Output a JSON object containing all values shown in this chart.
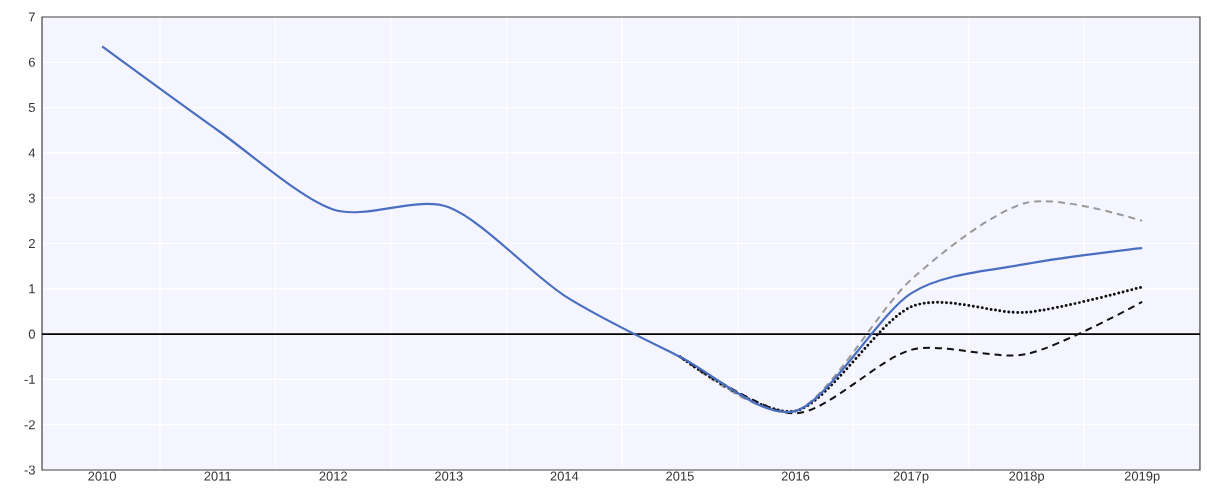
{
  "chart_data": {
    "type": "line",
    "categories": [
      "2010",
      "2011",
      "2012",
      "2013",
      "2014",
      "2015",
      "2016",
      "2017p",
      "2018p",
      "2019p"
    ],
    "series": [
      {
        "color": "#9a9a9a",
        "line_style": "dashed",
        "values": [
          null,
          null,
          null,
          null,
          null,
          -0.5,
          -1.7,
          1.2,
          2.9,
          2.5
        ]
      },
      {
        "color": "#111111",
        "line_style": "dashed",
        "values": [
          null,
          null,
          null,
          null,
          null,
          -0.5,
          -1.75,
          -0.35,
          -0.44,
          0.71
        ]
      },
      {
        "color": "#111111",
        "line_style": "dotted",
        "values": [
          null,
          null,
          null,
          null,
          null,
          -0.5,
          -1.7,
          0.6,
          0.48,
          1.04
        ]
      },
      {
        "color": "#4a6fc1",
        "line_style": "solid",
        "values": [
          6.35,
          4.5,
          2.75,
          2.8,
          0.85,
          -0.5,
          -1.7,
          0.9,
          1.55,
          1.9
        ]
      }
    ],
    "ylim": [
      -3,
      7
    ],
    "yticks": [
      -3,
      -2,
      -1,
      0,
      1,
      2,
      3,
      4,
      5,
      6,
      7
    ],
    "ref_lines": [
      {
        "axis": "y",
        "value": 0,
        "color": "#000000"
      }
    ],
    "grid": true,
    "marker": "none"
  }
}
